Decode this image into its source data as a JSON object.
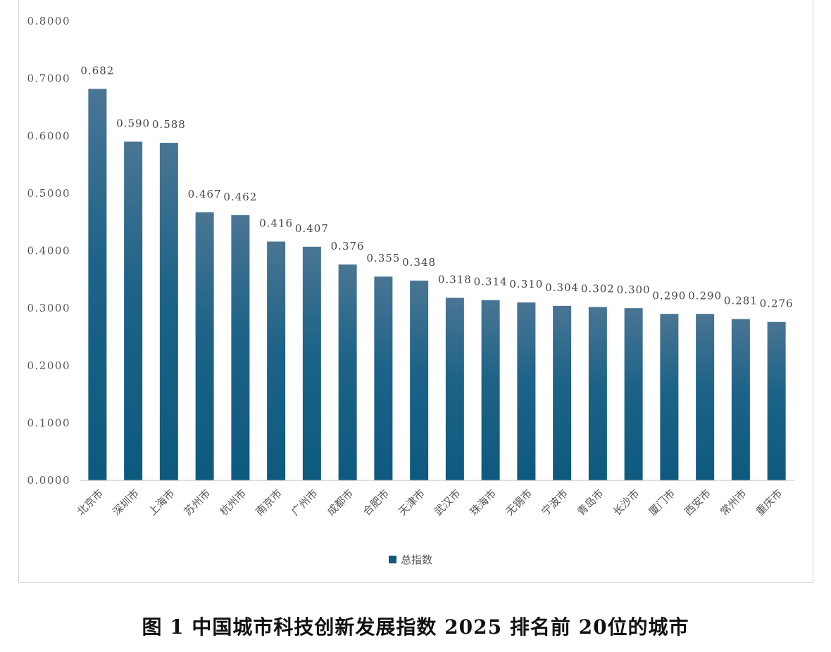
{
  "caption": "图 1 中国城市科技创新发展指数 2025 排名前 20位的城市",
  "chart_data": {
    "type": "bar",
    "title": "",
    "xlabel": "",
    "ylabel": "",
    "ylim": [
      0,
      0.8
    ],
    "y_ticks": [
      "0.0000",
      "0.1000",
      "0.2000",
      "0.3000",
      "0.4000",
      "0.5000",
      "0.6000",
      "0.7000",
      "0.8000"
    ],
    "grid": false,
    "legend_position": "bottom",
    "categories": [
      "北京市",
      "深圳市",
      "上海市",
      "苏州市",
      "杭州市",
      "南京市",
      "广州市",
      "成都市",
      "合肥市",
      "天津市",
      "武汉市",
      "珠海市",
      "无锡市",
      "宁波市",
      "青岛市",
      "长沙市",
      "厦门市",
      "西安市",
      "常州市",
      "重庆市"
    ],
    "series": [
      {
        "name": "总指数",
        "color": "#0e5a7e",
        "values": [
          0.682,
          0.59,
          0.588,
          0.467,
          0.462,
          0.416,
          0.407,
          0.376,
          0.355,
          0.348,
          0.318,
          0.314,
          0.31,
          0.304,
          0.302,
          0.3,
          0.29,
          0.29,
          0.281,
          0.276
        ],
        "labels": [
          "0.682",
          "0.590",
          "0.588",
          "0.467",
          "0.462",
          "0.416",
          "0.407",
          "0.376",
          "0.355",
          "0.348",
          "0.318",
          "0.314",
          "0.310",
          "0.304",
          "0.302",
          "0.300",
          "0.290",
          "0.290",
          "0.281",
          "0.276"
        ]
      }
    ]
  }
}
